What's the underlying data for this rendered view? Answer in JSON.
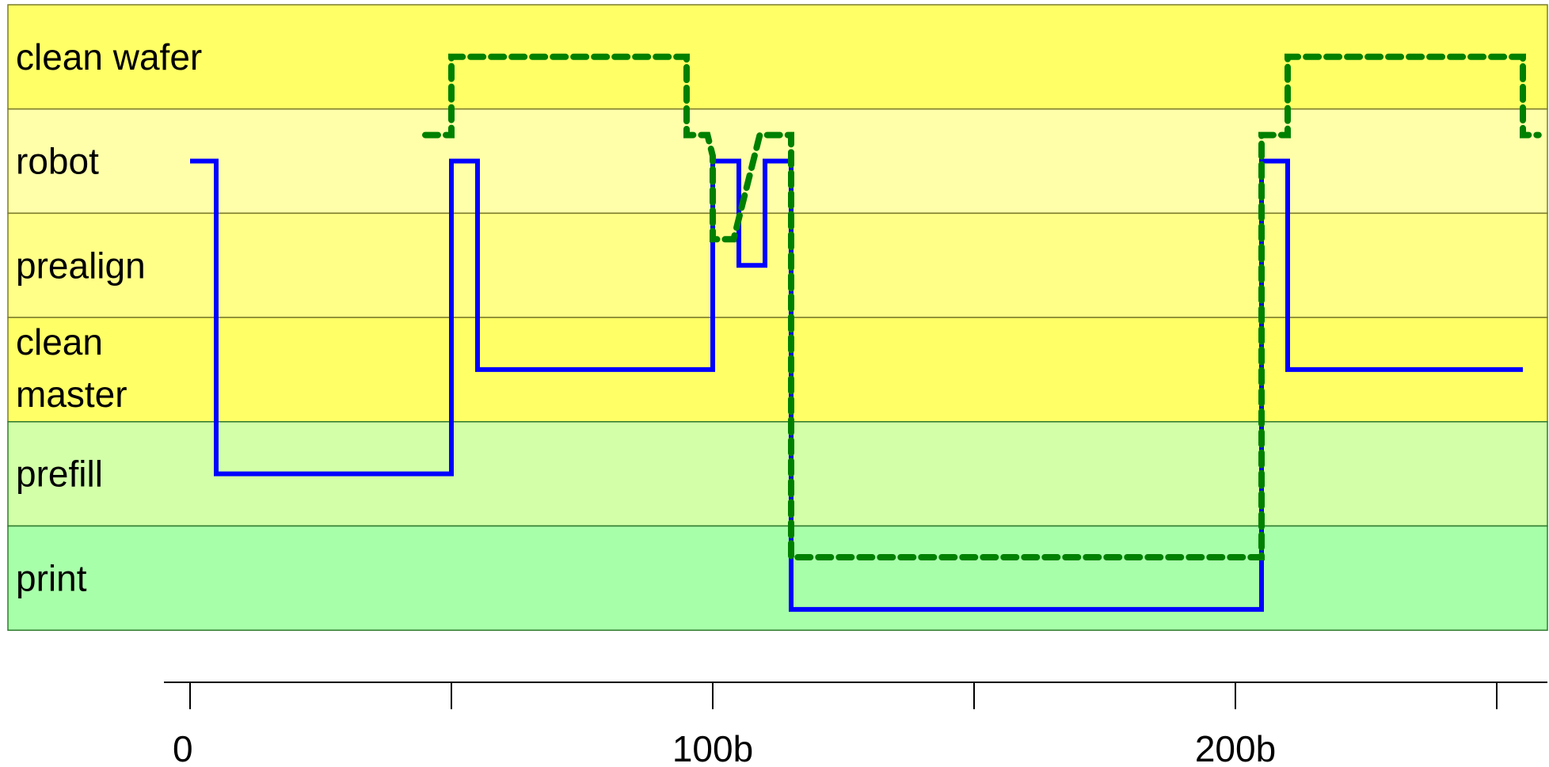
{
  "chart_data": {
    "type": "line",
    "title": "",
    "xlabel": "",
    "ylabel": "",
    "xlim": [
      -5,
      260
    ],
    "x_ticks": [
      0,
      50,
      100,
      150,
      200,
      250
    ],
    "x_tick_labels": [
      "0",
      "",
      "100b",
      "",
      "200b",
      ""
    ],
    "lanes": [
      {
        "label": "clean wafer",
        "color": "#ffff66"
      },
      {
        "label": "robot",
        "color": "#ffffaa"
      },
      {
        "label": "prealign",
        "color": "#ffff88"
      },
      {
        "label": "clean\nmaster",
        "color": "#ffff66"
      },
      {
        "label": "prefill",
        "color": "#d2ffa8"
      },
      {
        "label": "print",
        "color": "#a8ffaa"
      }
    ],
    "grid": false,
    "legend": "none",
    "series": [
      {
        "color": "#0000ff",
        "style": "solid",
        "points": [
          [
            0,
            1.5
          ],
          [
            5,
            1.5
          ],
          [
            5,
            4.5
          ],
          [
            50,
            4.5
          ],
          [
            50,
            1.5
          ],
          [
            55,
            1.5
          ],
          [
            55,
            3.5
          ],
          [
            100,
            3.5
          ],
          [
            100,
            1.5
          ],
          [
            105,
            1.5
          ],
          [
            105,
            2.5
          ],
          [
            110,
            2.5
          ],
          [
            110,
            1.5
          ],
          [
            115,
            1.5
          ],
          [
            115,
            5.8
          ],
          [
            205,
            5.8
          ],
          [
            205,
            1.5
          ],
          [
            210,
            1.5
          ],
          [
            210,
            3.5
          ],
          [
            255,
            3.5
          ]
        ]
      },
      {
        "color": "#008000",
        "style": "dashed",
        "points": [
          [
            45,
            1.25
          ],
          [
            50,
            1.25
          ],
          [
            50,
            0.5
          ],
          [
            95,
            0.5
          ],
          [
            95,
            1.25
          ],
          [
            99,
            1.25
          ],
          [
            100,
            1.45
          ],
          [
            100,
            2.25
          ],
          [
            104,
            2.25
          ],
          [
            109,
            1.25
          ],
          [
            115,
            1.25
          ],
          [
            115,
            5.3
          ],
          [
            205,
            5.3
          ],
          [
            205,
            1.25
          ],
          [
            210,
            1.25
          ],
          [
            210,
            0.5
          ],
          [
            255,
            0.5
          ],
          [
            255,
            1.25
          ],
          [
            258,
            1.25
          ]
        ]
      }
    ]
  }
}
